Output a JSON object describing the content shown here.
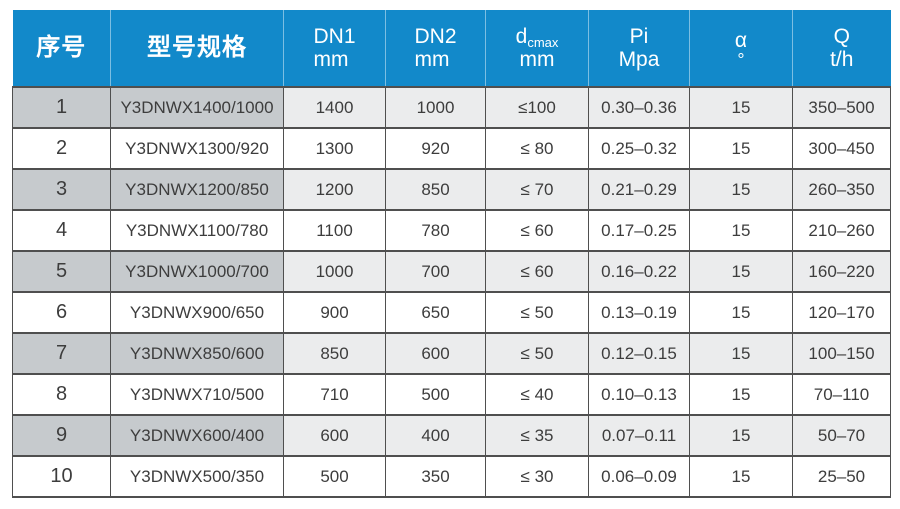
{
  "colors": {
    "header_bg": "#1289ca",
    "header_text": "#ffffff",
    "row_shade_dark": "#c6cacd",
    "row_shade_light": "#ebeced",
    "row_white": "#ffffff",
    "grid_line": "#4f4f4f",
    "body_text": "#3d3d3d"
  },
  "table": {
    "columns": [
      {
        "id": "index",
        "label": "序号"
      },
      {
        "id": "model",
        "label": "型号规格"
      },
      {
        "id": "dn1",
        "line1": "DN1",
        "line2": "mm"
      },
      {
        "id": "dn2",
        "line1": "DN2",
        "line2": "mm"
      },
      {
        "id": "dcmax",
        "line1": "d",
        "sub": "cmax",
        "line2": "mm"
      },
      {
        "id": "pi",
        "line1": "Pi",
        "line2": "Mpa"
      },
      {
        "id": "alpha",
        "line1": "α",
        "line2": "°"
      },
      {
        "id": "q",
        "line1": "Q",
        "line2": "t/h"
      }
    ],
    "rows": [
      {
        "index": "1",
        "model": "Y3DNWX1400/1000",
        "dn1": "1400",
        "dn2": "1000",
        "dcmax": "≤100",
        "pi": "0.30–0.36",
        "alpha": "15",
        "q": "350–500"
      },
      {
        "index": "2",
        "model": "Y3DNWX1300/920",
        "dn1": "1300",
        "dn2": "920",
        "dcmax": "≤ 80",
        "pi": "0.25–0.32",
        "alpha": "15",
        "q": "300–450"
      },
      {
        "index": "3",
        "model": "Y3DNWX1200/850",
        "dn1": "1200",
        "dn2": "850",
        "dcmax": "≤ 70",
        "pi": "0.21–0.29",
        "alpha": "15",
        "q": "260–350"
      },
      {
        "index": "4",
        "model": "Y3DNWX1100/780",
        "dn1": "1100",
        "dn2": "780",
        "dcmax": "≤ 60",
        "pi": "0.17–0.25",
        "alpha": "15",
        "q": "210–260"
      },
      {
        "index": "5",
        "model": "Y3DNWX1000/700",
        "dn1": "1000",
        "dn2": "700",
        "dcmax": "≤ 60",
        "pi": "0.16–0.22",
        "alpha": "15",
        "q": "160–220"
      },
      {
        "index": "6",
        "model": "Y3DNWX900/650",
        "dn1": "900",
        "dn2": "650",
        "dcmax": "≤ 50",
        "pi": "0.13–0.19",
        "alpha": "15",
        "q": "120–170"
      },
      {
        "index": "7",
        "model": "Y3DNWX850/600",
        "dn1": "850",
        "dn2": "600",
        "dcmax": "≤ 50",
        "pi": "0.12–0.15",
        "alpha": "15",
        "q": "100–150"
      },
      {
        "index": "8",
        "model": "Y3DNWX710/500",
        "dn1": "710",
        "dn2": "500",
        "dcmax": "≤ 40",
        "pi": "0.10–0.13",
        "alpha": "15",
        "q": "70–110"
      },
      {
        "index": "9",
        "model": "Y3DNWX600/400",
        "dn1": "600",
        "dn2": "400",
        "dcmax": "≤ 35",
        "pi": "0.07–0.11",
        "alpha": "15",
        "q": "50–70"
      },
      {
        "index": "10",
        "model": "Y3DNWX500/350",
        "dn1": "500",
        "dn2": "350",
        "dcmax": "≤ 30",
        "pi": "0.06–0.09",
        "alpha": "15",
        "q": "25–50"
      }
    ]
  }
}
